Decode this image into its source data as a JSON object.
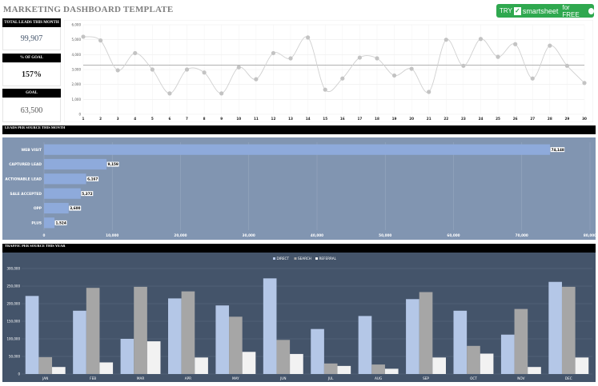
{
  "header": {
    "title": "MARKETING DASHBOARD TEMPLATE",
    "try_prefix": "TRY",
    "brand": "smartsheet",
    "try_suffix": "for FREE"
  },
  "kpis": {
    "total_leads_label": "TOTAL LEADS THIS MONTH",
    "total_leads_value": "99,907",
    "pct_goal_label": "% OF GOAL",
    "pct_goal_value": "157%",
    "goal_label": "GOAL",
    "goal_value": "63,500"
  },
  "sections": {
    "leads_by_source": "LEADS PER SOURCE THIS MONTH",
    "traffic_by_source": "TRAFFIC PER SOURCE THIS YEAR"
  },
  "chart_data": [
    {
      "type": "line",
      "x": [
        1,
        2,
        3,
        4,
        5,
        6,
        7,
        8,
        9,
        10,
        11,
        12,
        13,
        14,
        15,
        16,
        17,
        18,
        19,
        20,
        21,
        22,
        23,
        24,
        25,
        26,
        27,
        28,
        29,
        30
      ],
      "series": [
        {
          "values": [
            5200,
            4950,
            2950,
            4100,
            3000,
            1400,
            3000,
            2800,
            1400,
            3150,
            2350,
            4100,
            3750,
            5150,
            1650,
            2400,
            3800,
            3750,
            2600,
            3050,
            1500,
            5000,
            3250,
            5050,
            3850,
            4700,
            2400,
            4600,
            3250,
            2100
          ]
        },
        {
          "values": [
            3300,
            3300,
            3300,
            3300,
            3300,
            3300,
            3300,
            3300,
            3300,
            3300,
            3300,
            3300,
            3300,
            3300,
            3300,
            3300,
            3300,
            3300,
            3300,
            3300,
            3300,
            3300,
            3300,
            3300,
            3300,
            3300,
            3300,
            3300,
            3300,
            3300
          ]
        }
      ],
      "ylim": [
        0,
        6000
      ],
      "yticks": [
        "0",
        "1,000",
        "2,000",
        "3,000",
        "4,000",
        "5,000",
        "6,000"
      ],
      "grid": true
    },
    {
      "type": "bar",
      "orientation": "horizontal",
      "categories": [
        "WEB VISIT",
        "CAPTURED LEAD",
        "ACTIONABLE LEAD",
        "SALE ACCEPTED",
        "OPP",
        "PLUS"
      ],
      "values": [
        74148,
        9159,
        6167,
        5372,
        3600,
        1524
      ],
      "data_labels": [
        "74,148",
        "9,159",
        "6,167",
        "5,372",
        "3,600",
        "1,524"
      ],
      "xlim": [
        0,
        80000
      ],
      "xticks": [
        "0",
        "10,000",
        "20,000",
        "30,000",
        "40,000",
        "50,000",
        "60,000",
        "70,000",
        "80,000"
      ],
      "grid": true
    },
    {
      "type": "bar",
      "categories": [
        "JAN",
        "FEB",
        "MAR",
        "APR",
        "MAY",
        "JUN",
        "JUL",
        "AUG",
        "SEP",
        "OCT",
        "NOV",
        "DEC"
      ],
      "series": [
        {
          "name": "DIRECT",
          "color": "#b4c7e7",
          "values": [
            222000,
            180000,
            100000,
            215000,
            195000,
            272000,
            128000,
            165000,
            213000,
            180000,
            112000,
            262000
          ]
        },
        {
          "name": "SEARCH",
          "color": "#a6a6a6",
          "values": [
            48000,
            245000,
            248000,
            235000,
            163000,
            97000,
            30000,
            27000,
            233000,
            80000,
            185000,
            248000
          ]
        },
        {
          "name": "REFERRAL",
          "color": "#f2f2f2",
          "values": [
            20000,
            33000,
            93000,
            47000,
            63000,
            57000,
            23000,
            15000,
            47000,
            58000,
            20000,
            47000
          ]
        }
      ],
      "ylim": [
        0,
        300000
      ],
      "yticks": [
        "0",
        "50,000",
        "100,000",
        "150,000",
        "200,000",
        "250,000",
        "300,000"
      ],
      "legend": "top-center",
      "grid": true
    }
  ]
}
